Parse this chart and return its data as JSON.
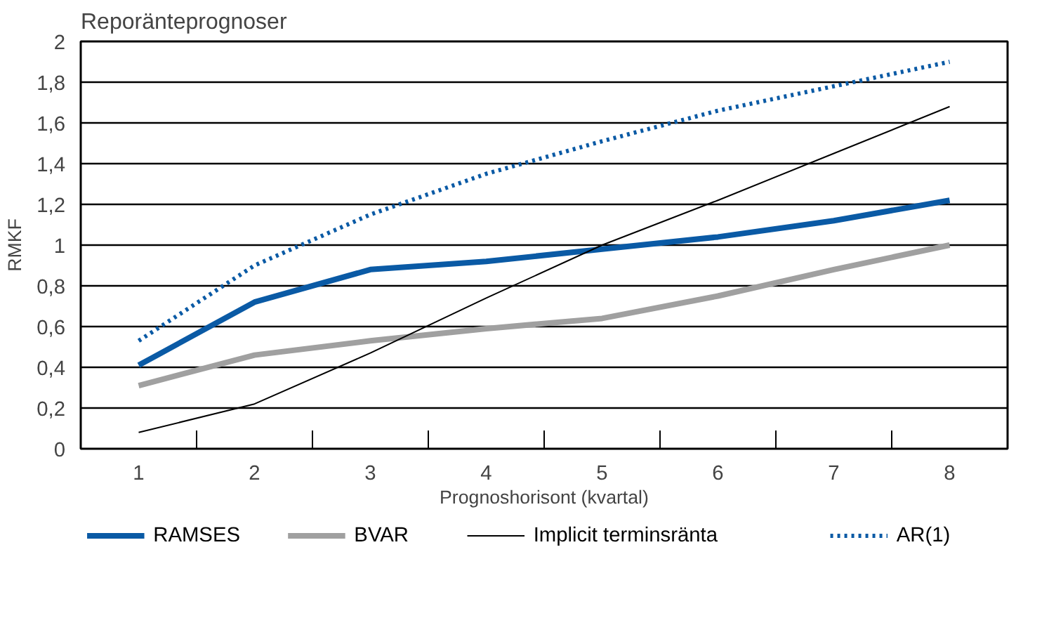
{
  "chart_data": {
    "type": "line",
    "title": "Reporänteprognoser",
    "xlabel": "Prognoshorisont (kvartal)",
    "ylabel": "RMKF",
    "categories": [
      "1",
      "2",
      "3",
      "4",
      "5",
      "6",
      "7",
      "8"
    ],
    "series": [
      {
        "name": "RAMSES",
        "color": "#0a5aa5",
        "values": [
          0.41,
          0.72,
          0.88,
          0.92,
          0.98,
          1.04,
          1.12,
          1.22
        ],
        "line_style": "solid"
      },
      {
        "name": "BVAR",
        "color": "#a0a0a0",
        "values": [
          0.31,
          0.46,
          0.53,
          0.59,
          0.64,
          0.75,
          0.88,
          1.0
        ],
        "line_style": "solid"
      },
      {
        "name": "Implicit terminsränta",
        "color": "#000000",
        "values": [
          0.08,
          0.22,
          0.47,
          0.74,
          1.0,
          1.22,
          1.45,
          1.68
        ],
        "line_style": "solid"
      },
      {
        "name": "AR(1)",
        "color": "#0a5aa5",
        "values": [
          0.53,
          0.9,
          1.15,
          1.35,
          1.51,
          1.66,
          1.78,
          1.9
        ],
        "line_style": "dotted"
      }
    ],
    "ylim": [
      0,
      2
    ],
    "yticks": [
      0,
      {
        "value": 0.2,
        "label": "0,2"
      },
      {
        "value": 0.4,
        "label": "0,4"
      },
      {
        "value": 0.6,
        "label": "0,6"
      },
      {
        "value": 0.8,
        "label": "0,8"
      },
      1,
      {
        "value": 1.2,
        "label": "1,2"
      },
      {
        "value": 1.4,
        "label": "1,4"
      },
      {
        "value": 1.6,
        "label": "1,6"
      },
      {
        "value": 1.8,
        "label": "1,8"
      },
      2
    ],
    "grid": "y",
    "legend": "bottom",
    "marker": "none"
  }
}
